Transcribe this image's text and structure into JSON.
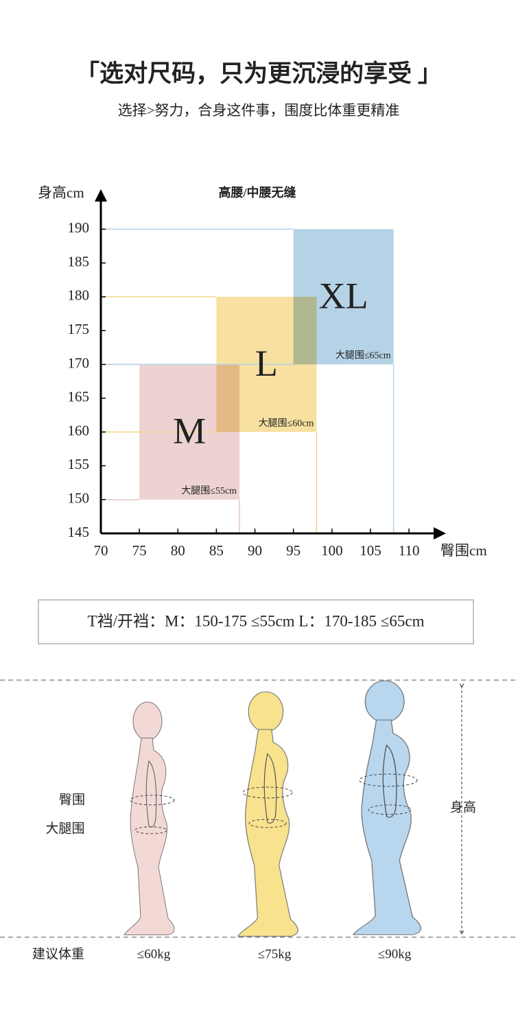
{
  "header": {
    "title": "「选对尺码，只为更沉浸的享受 」",
    "subtitle": "选择>努力，合身这件事，围度比体重更精准"
  },
  "chart_data": {
    "type": "region",
    "title": "高腰/中腰无缝",
    "y_label": "身高cm",
    "x_label": "臀围cm",
    "xlim": [
      70,
      114
    ],
    "ylim": [
      145,
      195
    ],
    "xticks": [
      70,
      75,
      80,
      85,
      90,
      95,
      100,
      105,
      110
    ],
    "yticks": [
      145,
      150,
      155,
      160,
      165,
      170,
      175,
      180,
      185,
      190
    ],
    "regions": [
      {
        "name": "M",
        "xrange": [
          75,
          88
        ],
        "yrange": [
          150,
          170
        ],
        "label": "大腿围≤55cm",
        "color": "#ecd3d1",
        "line_color": "#e6c4c2"
      },
      {
        "name": "L",
        "xrange": [
          85,
          98
        ],
        "yrange": [
          160,
          180
        ],
        "label": "大腿围≤60cm",
        "color": "#f7e0a0",
        "line_color": "#f0d78c"
      },
      {
        "name": "XL",
        "xrange": [
          95,
          108
        ],
        "yrange": [
          170,
          190
        ],
        "label": "大腿围≤65cm",
        "color": "#b5d2e6",
        "line_color": "#b3d3ea"
      }
    ]
  },
  "note": "T裆/开裆：M：150-175 ≤55cm    L：170-185 ≤65cm",
  "figures": {
    "hip_label": "臀围",
    "thigh_label": "大腿围",
    "height_label": "身高",
    "weight_label": "建议体重",
    "weights": [
      "≤60kg",
      "≤75kg",
      "≤90kg"
    ]
  }
}
